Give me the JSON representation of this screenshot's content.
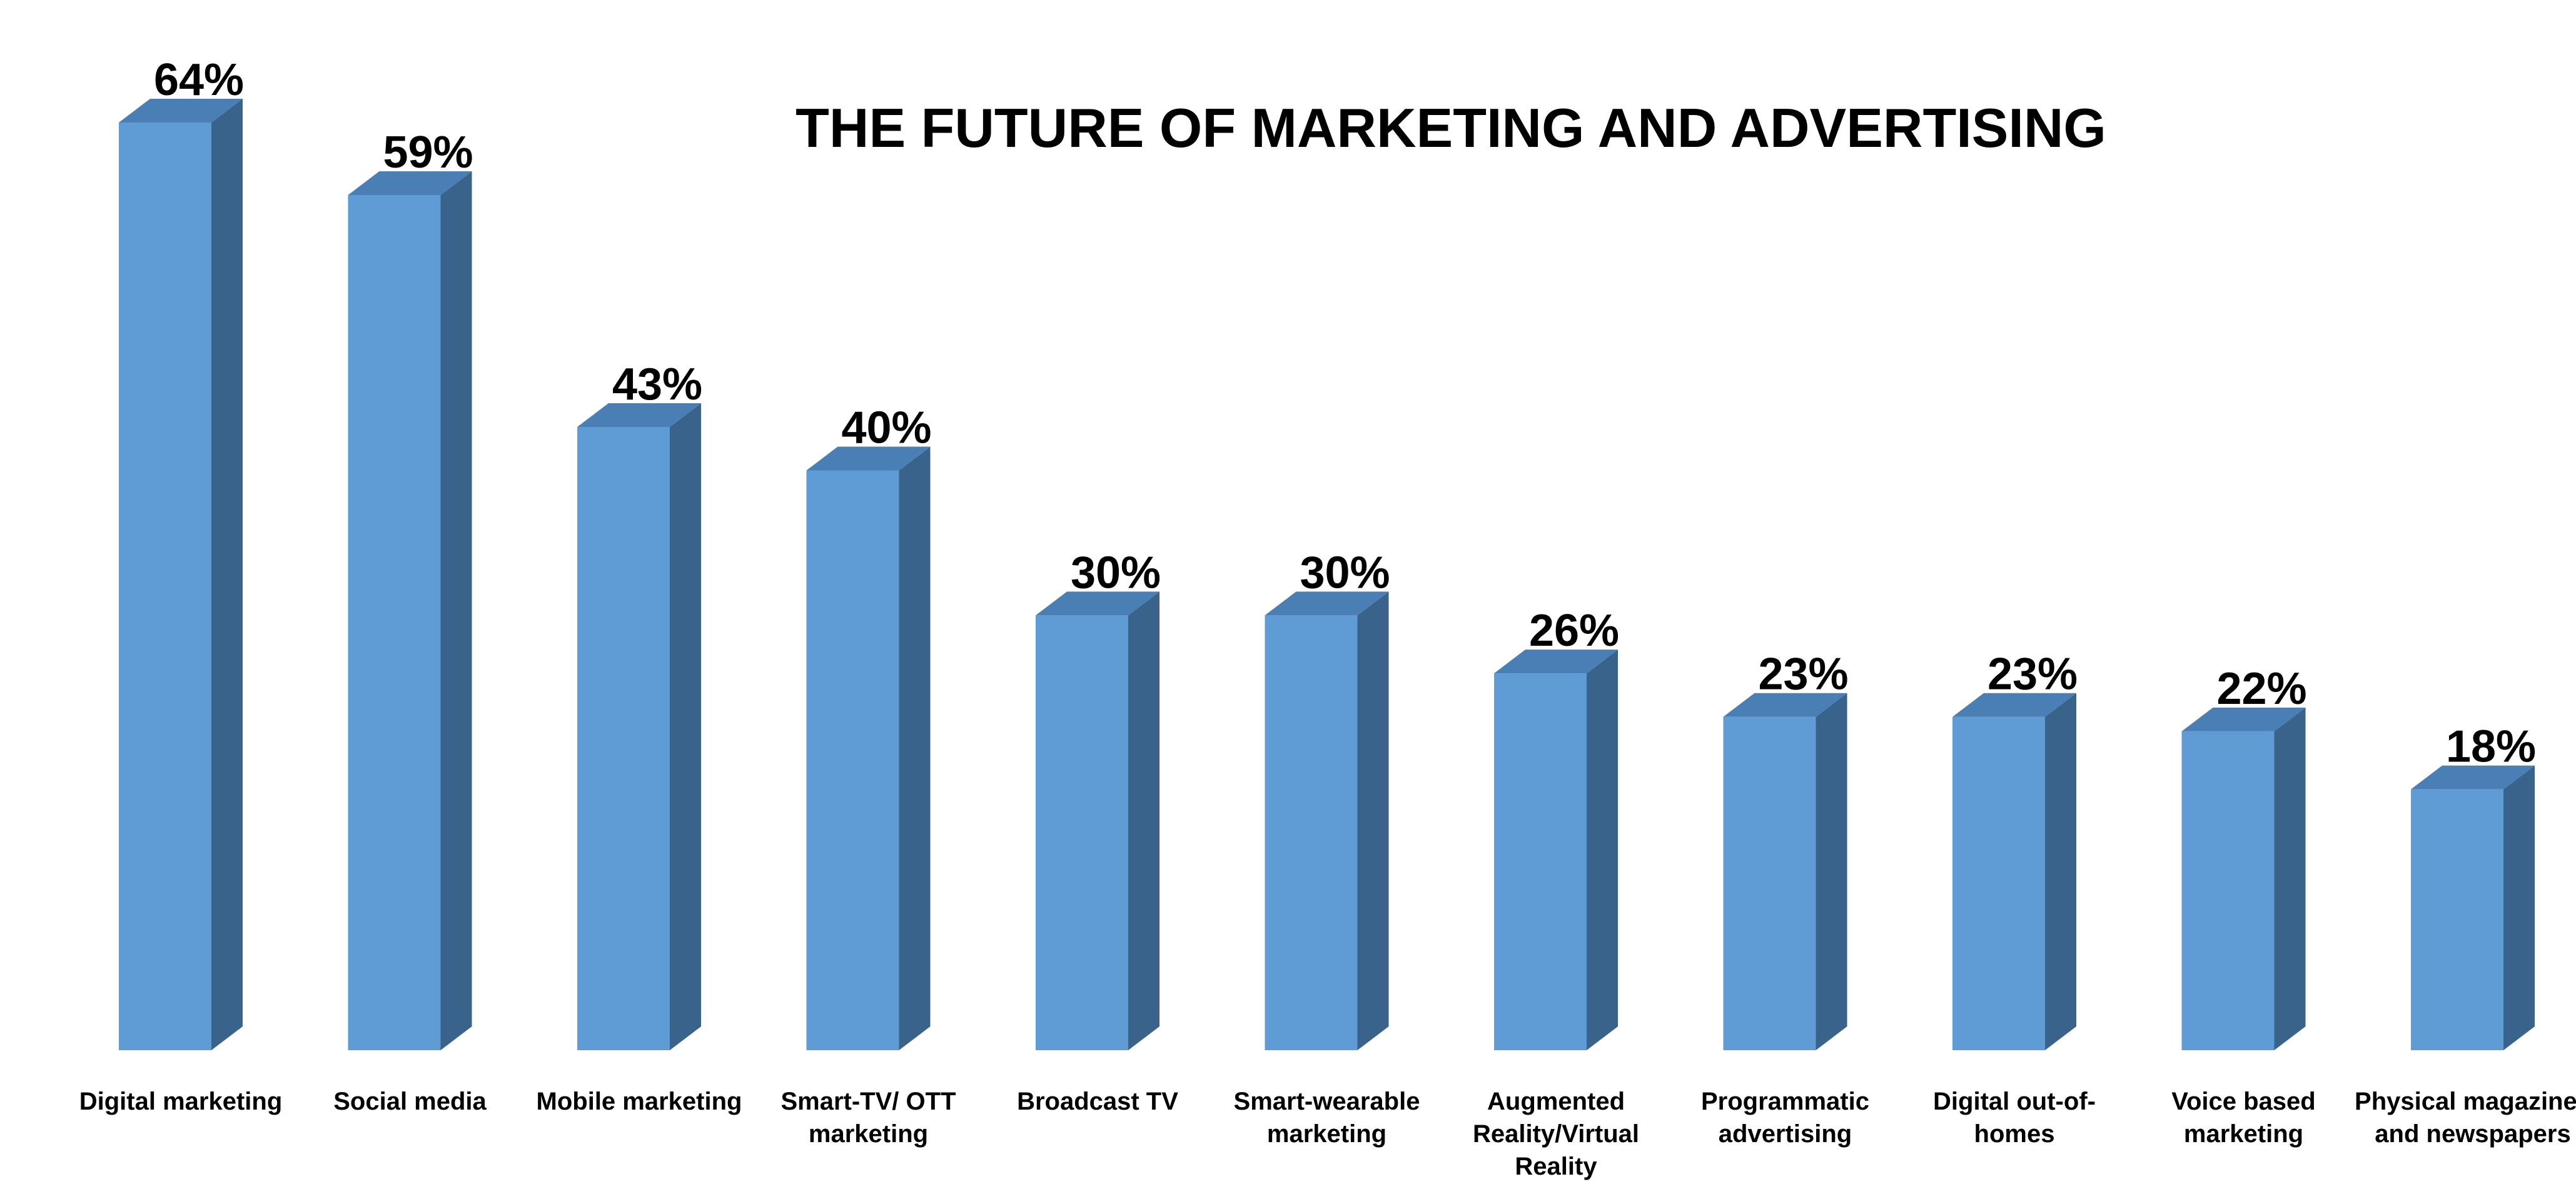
{
  "chart_data": {
    "type": "bar",
    "title": "THE FUTURE OF MARKETING AND ADVERTISING",
    "categories": [
      [
        "Digital marketing"
      ],
      [
        "Social media"
      ],
      [
        "Mobile marketing"
      ],
      [
        "Smart-TV/ OTT",
        "marketing"
      ],
      [
        "Broadcast TV"
      ],
      [
        "Smart-wearable",
        "marketing"
      ],
      [
        "Augmented",
        "Reality/Virtual",
        "Reality"
      ],
      [
        "Programmatic",
        "advertising"
      ],
      [
        "Digital  out-of-",
        "homes"
      ],
      [
        "Voice based",
        "marketing"
      ],
      [
        "Physical magazines",
        "and newspapers"
      ]
    ],
    "values": [
      64,
      59,
      43,
      40,
      30,
      30,
      26,
      23,
      23,
      22,
      18
    ],
    "value_labels": [
      "64%",
      "59%",
      "43%",
      "40%",
      "30%",
      "30%",
      "26%",
      "23%",
      "23%",
      "22%",
      "18%"
    ],
    "xlabel": "",
    "ylabel": "",
    "ylim": [
      0,
      64
    ],
    "grid": false,
    "legend": "none",
    "style": "3d-column",
    "colors": {
      "front": "#5f9bd5",
      "side": "#3a638c",
      "top": "#4a7fb5"
    }
  }
}
